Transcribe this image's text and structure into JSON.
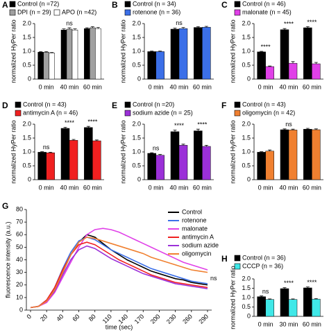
{
  "chart_data": [
    {
      "type": "bar",
      "panel": "A",
      "ylabel": "normalized HyPer ratio",
      "categories": [
        "0 min",
        "40 min",
        "60 min"
      ],
      "series": [
        {
          "name": "Control (n =72)",
          "color": "#000000",
          "values": [
            0.97,
            1.77,
            1.82
          ],
          "errors": [
            0.02,
            0.04,
            0.03
          ]
        },
        {
          "name": "DPI (n = 29)",
          "color": "#a0a0a0",
          "values": [
            0.97,
            1.8,
            1.85
          ],
          "errors": [
            0.02,
            0.05,
            0.04
          ]
        },
        {
          "name": "APO (n =42)",
          "color": "#ffffff",
          "values": [
            0.94,
            1.77,
            1.82
          ],
          "errors": [
            0.02,
            0.04,
            0.04
          ]
        }
      ],
      "annotations": [
        null,
        "ns",
        null
      ],
      "ylim": [
        0,
        2
      ],
      "yticks": [
        0,
        0.5,
        {
          "value": 1,
          "label": "1.0"
        },
        1.5,
        {
          "value": 2,
          "label": "2.0"
        }
      ]
    },
    {
      "type": "bar",
      "panel": "B",
      "ylabel": "normalized HyPer ratio",
      "categories": [
        "0 min",
        "40 min",
        "60 min"
      ],
      "series": [
        {
          "name": "Control (n = 34)",
          "color": "#000000",
          "values": [
            0.99,
            1.8,
            1.86
          ],
          "errors": [
            0.02,
            0.04,
            0.03
          ]
        },
        {
          "name": "rotenone (n = 36)",
          "color": "#3b6fe8",
          "values": [
            0.99,
            1.82,
            1.87
          ],
          "errors": [
            0.02,
            0.04,
            0.03
          ]
        }
      ],
      "annotations": [
        null,
        "ns",
        null
      ],
      "ylim": [
        0,
        2
      ],
      "yticks": [
        0,
        0.5,
        {
          "value": 1,
          "label": "1.0"
        },
        1.5,
        {
          "value": 2,
          "label": "2.0"
        }
      ]
    },
    {
      "type": "bar",
      "panel": "C",
      "ylabel": "normalized HyPer ratio",
      "categories": [
        "0 min",
        "40 min",
        "60 min"
      ],
      "series": [
        {
          "name": "Control (n = 46)",
          "color": "#000000",
          "values": [
            0.98,
            1.78,
            1.85
          ],
          "errors": [
            0.02,
            0.04,
            0.04
          ]
        },
        {
          "name": "malonate (n = 45)",
          "color": "#e040e8",
          "values": [
            0.45,
            0.57,
            0.55
          ],
          "errors": [
            0.02,
            0.06,
            0.05
          ]
        }
      ],
      "annotations": [
        "****",
        "****",
        "****"
      ],
      "ylim": [
        0,
        2
      ],
      "yticks": [
        0,
        0.5,
        {
          "value": 1,
          "label": "1.0"
        },
        1.5,
        {
          "value": 2,
          "label": "2.0"
        }
      ]
    },
    {
      "type": "bar",
      "panel": "D",
      "ylabel": "normalized HyPer ratio",
      "categories": [
        "0 min",
        "40 min",
        "60 min"
      ],
      "series": [
        {
          "name": "Control (n = 43)",
          "color": "#000000",
          "values": [
            0.99,
            1.85,
            1.88
          ],
          "errors": [
            0.02,
            0.04,
            0.04
          ]
        },
        {
          "name": "antimycin A (n = 46)",
          "color": "#f02020",
          "values": [
            0.97,
            1.42,
            1.4
          ],
          "errors": [
            0.02,
            0.03,
            0.03
          ]
        }
      ],
      "annotations": [
        "ns",
        "****",
        "****"
      ],
      "ylim": [
        0,
        2
      ],
      "yticks": [
        0,
        0.5,
        {
          "value": 1,
          "label": "1.0"
        },
        1.5,
        {
          "value": 2,
          "label": "2.0"
        }
      ]
    },
    {
      "type": "bar",
      "panel": "E",
      "ylabel": "normalized HyPer ratio",
      "categories": [
        "0 min",
        "40 min",
        "60 min"
      ],
      "series": [
        {
          "name": "Control (n =20)",
          "color": "#000000",
          "values": [
            0.95,
            1.73,
            1.76
          ],
          "errors": [
            0.02,
            0.06,
            0.06
          ]
        },
        {
          "name": "sodium azide (n = 25)",
          "color": "#9b30d8",
          "values": [
            0.88,
            1.24,
            1.2
          ],
          "errors": [
            0.03,
            0.04,
            0.04
          ]
        }
      ],
      "annotations": [
        "ns",
        "****",
        "****"
      ],
      "ylim": [
        0,
        2
      ],
      "yticks": [
        0,
        0.5,
        {
          "value": 1,
          "label": "1.0"
        },
        1.5,
        {
          "value": 2,
          "label": "2.0"
        }
      ]
    },
    {
      "type": "bar",
      "panel": "F",
      "ylabel": "normalized HyPer ratio",
      "categories": [
        "0 min",
        "40 min",
        "60 min"
      ],
      "series": [
        {
          "name": "Control (n = 43)",
          "color": "#000000",
          "values": [
            0.99,
            1.8,
            1.82
          ],
          "errors": [
            0.02,
            0.03,
            0.03
          ]
        },
        {
          "name": "oligomycin (n = 42)",
          "color": "#f08030",
          "values": [
            1.03,
            1.79,
            1.8
          ],
          "errors": [
            0.04,
            0.03,
            0.03
          ]
        }
      ],
      "annotations": [
        null,
        "ns",
        null
      ],
      "ylim": [
        0,
        2
      ],
      "yticks": [
        0,
        0.5,
        {
          "value": 1,
          "label": "1.0"
        },
        1.5,
        {
          "value": 2,
          "label": "2.0"
        }
      ]
    },
    {
      "type": "line",
      "panel": "G",
      "xlabel": "time (sec)",
      "ylabel": "fluorescence intensity (a.u.)",
      "annotation": "ns",
      "categories": [
        "0",
        null,
        "20",
        null,
        "40",
        null,
        "60",
        null,
        "80",
        null,
        "110",
        null,
        "140",
        null,
        "170",
        null,
        "200",
        null,
        "230",
        null,
        "260",
        null,
        "290"
      ],
      "series": [
        {
          "name": "Control",
          "color": "#000000",
          "values": [
            2,
            3,
            7,
            16,
            30,
            44,
            54,
            60,
            58,
            53,
            48,
            44,
            40,
            37,
            34,
            31,
            29,
            27,
            25,
            24,
            22,
            21,
            20
          ]
        },
        {
          "name": "rotenone",
          "color": "#3b6fe8",
          "values": [
            2,
            3,
            8,
            18,
            33,
            46,
            55,
            58,
            56,
            52,
            48,
            45,
            42,
            39,
            36,
            33,
            31,
            29,
            27,
            25,
            23,
            22,
            21
          ]
        },
        {
          "name": "malonate",
          "color": "#e040e8",
          "values": [
            2,
            3,
            6,
            14,
            26,
            38,
            50,
            60,
            64,
            65,
            64,
            62,
            59,
            56,
            53,
            50,
            47,
            44,
            41,
            38,
            36,
            34,
            32
          ]
        },
        {
          "name": "antimycin A",
          "color": "#f02020",
          "values": [
            2,
            3,
            8,
            18,
            32,
            44,
            52,
            54,
            52,
            48,
            44,
            40,
            37,
            34,
            31,
            28,
            26,
            24,
            22,
            21,
            20,
            19,
            18
          ]
        },
        {
          "name": "sodium azide",
          "color": "#9b30d8",
          "values": [
            2,
            3,
            7,
            15,
            28,
            40,
            48,
            51,
            49,
            45,
            41,
            38,
            35,
            32,
            29,
            27,
            25,
            23,
            21,
            20,
            19,
            18,
            17
          ]
        },
        {
          "name": "oligomycin",
          "color": "#f08030",
          "values": [
            2,
            3,
            7,
            16,
            30,
            44,
            54,
            58,
            57,
            55,
            53,
            51,
            49,
            47,
            45,
            42,
            40,
            38,
            36,
            34,
            32,
            31,
            30
          ]
        }
      ],
      "ylim": [
        0,
        80
      ],
      "yticks": [
        0,
        10,
        20,
        30,
        40,
        50,
        60,
        70,
        80
      ]
    },
    {
      "type": "bar",
      "panel": "H",
      "ylabel": "normalized HyPer ratio",
      "categories": [
        "0 min",
        "30 min",
        "60 min"
      ],
      "series": [
        {
          "name": "Control (n = 36)",
          "color": "#000000",
          "values": [
            1.05,
            1.48,
            1.52
          ],
          "errors": [
            0.04,
            0.05,
            0.05
          ]
        },
        {
          "name": "CCCP (n = 36)",
          "color": "#40e8e8",
          "values": [
            0.9,
            0.9,
            0.92
          ],
          "errors": [
            0.03,
            0.03,
            0.03
          ]
        }
      ],
      "annotations": [
        "ns",
        "****",
        "****"
      ],
      "ylim": [
        0,
        2
      ],
      "yticks": [
        0,
        0.5,
        {
          "value": 1,
          "label": "1.0"
        },
        1.5,
        {
          "value": 2,
          "label": "2.0"
        }
      ]
    }
  ]
}
